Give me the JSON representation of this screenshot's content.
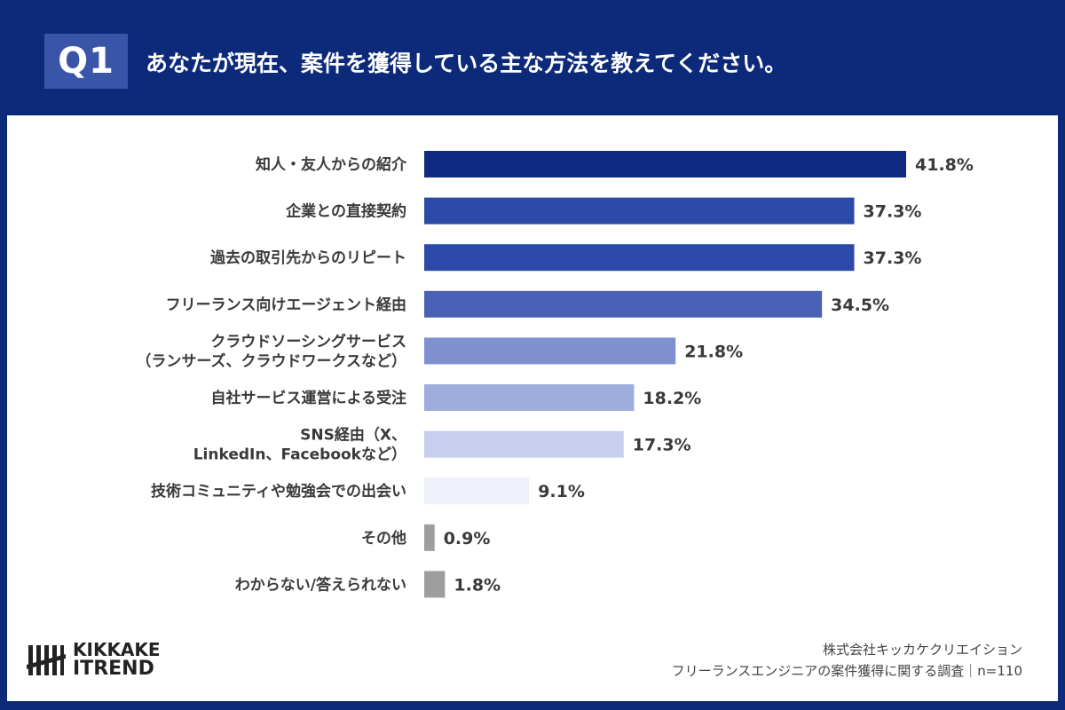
{
  "header": {
    "badge": "Q1",
    "question": "あなたが現在、案件を獲得している主な方法を教えてください。"
  },
  "chart_data": {
    "type": "bar",
    "orientation": "horizontal",
    "title": "",
    "xlabel": "",
    "ylabel": "",
    "xlim": [
      0,
      41.8
    ],
    "grid": false,
    "categories": [
      [
        "知人・友人からの紹介"
      ],
      [
        "企業との直接契約"
      ],
      [
        "過去の取引先からのリピート"
      ],
      [
        "フリーランス向けエージェント経由"
      ],
      [
        "クラウドソーシングサービス",
        "（ランサーズ、クラウドワークスなど）"
      ],
      [
        "自社サービス運営による受注"
      ],
      [
        "SNS経由（X、",
        "LinkedIn、Facebookなど）"
      ],
      [
        "技術コミュニティや勉強会での出会い"
      ],
      [
        "その他"
      ],
      [
        "わからない/答えられない"
      ]
    ],
    "values": [
      41.8,
      37.3,
      37.3,
      34.5,
      21.8,
      18.2,
      17.3,
      9.1,
      0.9,
      1.8
    ],
    "value_labels": [
      "41.8%",
      "37.3%",
      "37.3%",
      "34.5%",
      "21.8%",
      "18.2%",
      "17.3%",
      "9.1%",
      "0.9%",
      "1.8%"
    ],
    "colors": [
      "#0f2a80",
      "#2c4aa7",
      "#2c4aa7",
      "#4a62b6",
      "#7e90cd",
      "#9eaddc",
      "#c7cfec",
      "#eef1fa",
      "#9e9e9e",
      "#9e9e9e"
    ]
  },
  "logo": {
    "line1": "KIKKAKE",
    "line2": "ITREND"
  },
  "footer": {
    "company": "株式会社キッカケクリエイション",
    "survey": "フリーランスエンジニアの案件獲得に関する調査｜n=110"
  }
}
